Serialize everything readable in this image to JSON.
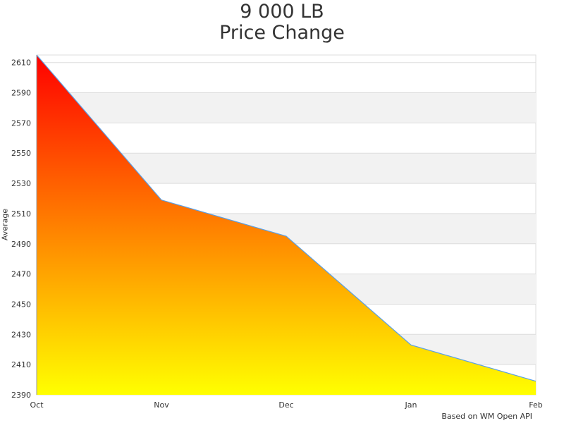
{
  "chart_data": {
    "type": "area",
    "title": "9 000 LB",
    "subtitle": "Price Change",
    "ylabel": "Average",
    "xlabel": "",
    "categories": [
      "Oct",
      "Nov",
      "Dec",
      "Jan",
      "Feb"
    ],
    "values": [
      2615,
      2519,
      2495,
      2423,
      2399
    ],
    "ylim": [
      2390,
      2615
    ],
    "yticks": [
      2390,
      2410,
      2430,
      2450,
      2470,
      2490,
      2510,
      2530,
      2550,
      2570,
      2590,
      2610
    ],
    "grid": true,
    "legend": "none",
    "line_color": "#5aa0e6",
    "fill_gradient": [
      "#ff0000",
      "#ffff00"
    ],
    "credit": "Based on WM Open API"
  }
}
